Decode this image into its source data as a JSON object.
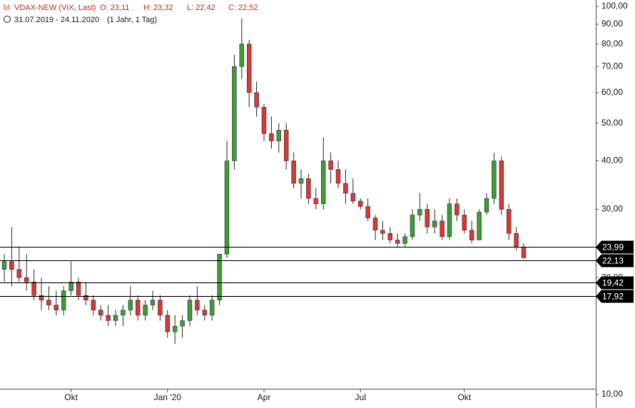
{
  "header": {
    "title": "VDAX-NEW (VIX, Last)",
    "ohlc": [
      "O: 23,11",
      "H: 23,32",
      "L: 22,42",
      "C: 22,52"
    ],
    "range": "31.07.2019 - 24.11.2020",
    "period": "(1 Jahr, 1 Tag)"
  },
  "chart_data": {
    "type": "candlestick",
    "log_scale": true,
    "up_color": "#3f9b3a",
    "down_color": "#d63a3a",
    "categories": [
      null,
      null,
      null,
      null,
      null,
      null,
      null,
      null,
      null,
      "Okt",
      null,
      null,
      null,
      null,
      null,
      null,
      null,
      null,
      null,
      null,
      null,
      null,
      "Jan '20",
      null,
      null,
      null,
      null,
      null,
      null,
      null,
      null,
      null,
      null,
      null,
      null,
      "Apr",
      null,
      null,
      null,
      null,
      null,
      null,
      null,
      null,
      null,
      null,
      null,
      null,
      "Jul",
      null,
      null,
      null,
      null,
      null,
      null,
      null,
      null,
      null,
      null,
      null,
      null,
      null,
      "Okt",
      null,
      null,
      null,
      null,
      null,
      null,
      null,
      null
    ],
    "open": [
      21,
      22,
      21,
      20,
      19.5,
      18,
      17.5,
      17,
      16.5,
      18.5,
      19.5,
      18,
      17.5,
      16.5,
      16,
      15.5,
      16,
      16.5,
      17.5,
      16,
      17,
      17.5,
      16,
      14.5,
      15,
      15.5,
      17.5,
      16.5,
      16,
      17.5,
      23,
      40,
      70,
      80,
      60,
      55,
      47,
      45,
      48,
      40,
      35,
      36,
      32,
      31,
      40,
      38,
      35,
      33,
      31.5,
      30.5,
      28.5,
      26.5,
      26,
      25,
      24.5,
      25.5,
      29,
      30,
      27,
      28,
      25.5,
      31,
      29,
      26.5,
      25,
      29.5,
      32,
      40,
      30,
      26,
      24
    ],
    "high": [
      23,
      27,
      24,
      23,
      21,
      20,
      19,
      18.5,
      19,
      22,
      20,
      19.5,
      18,
      17,
      17,
      16.5,
      17,
      19,
      18,
      17.5,
      18.5,
      18,
      16.5,
      16,
      16,
      18,
      19,
      17,
      18,
      23,
      45,
      75,
      93,
      82,
      64,
      56,
      52,
      50,
      50,
      42,
      38,
      37,
      34,
      46,
      42,
      40,
      38,
      36,
      32,
      32,
      29,
      28,
      27,
      26,
      26,
      30,
      33,
      31,
      30,
      29,
      32,
      32,
      30,
      28,
      30,
      33,
      42,
      41,
      31,
      27,
      24.5
    ],
    "low": [
      19.5,
      19,
      19.5,
      18.5,
      17.5,
      16.5,
      16.5,
      16,
      16,
      18,
      17.5,
      17,
      16,
      15.5,
      15,
      15,
      15,
      16,
      15.5,
      15.5,
      16.5,
      15.5,
      14,
      13.5,
      14,
      15,
      16,
      15.5,
      15.5,
      17,
      22.5,
      38,
      65,
      55,
      52,
      45,
      43,
      42,
      38,
      34,
      32,
      31,
      30,
      30,
      35,
      34,
      31,
      31,
      30,
      28,
      25,
      25,
      24.5,
      24,
      24,
      25,
      28,
      26,
      26,
      25,
      25,
      28,
      26,
      24.5,
      25,
      29,
      31,
      29,
      25,
      23.5,
      22.4
    ],
    "close": [
      22,
      21,
      20,
      19.5,
      18,
      17.5,
      17,
      16.5,
      18.5,
      19.5,
      18,
      17.5,
      16.5,
      16,
      15.5,
      16,
      16.5,
      17.5,
      16,
      17,
      17.5,
      16,
      14.5,
      15,
      15.5,
      17.5,
      16.5,
      16,
      17.5,
      23,
      40,
      70,
      80,
      60,
      55,
      47,
      45,
      48,
      40,
      35,
      36,
      32,
      31,
      40,
      38,
      35,
      33,
      31.5,
      30.5,
      28.5,
      26.5,
      26,
      25,
      24.5,
      25.5,
      29,
      30,
      27,
      28,
      25.5,
      31,
      29,
      26.5,
      25,
      29.5,
      32,
      40,
      30,
      26,
      24,
      22.5
    ],
    "ylim": [
      10,
      100
    ],
    "yticks": [
      {
        "value": 100,
        "label": "100,00"
      },
      {
        "value": 90,
        "label": "90,00"
      },
      {
        "value": 80,
        "label": "80,00"
      },
      {
        "value": 70,
        "label": "70,00"
      },
      {
        "value": 60,
        "label": "60,00"
      },
      {
        "value": 50,
        "label": "50,00"
      },
      {
        "value": 40,
        "label": "40,00"
      },
      {
        "value": 30,
        "label": "30,00"
      },
      {
        "value": 20,
        "label": "20,00"
      },
      {
        "value": 10,
        "label": "10,00"
      }
    ],
    "hlines": {
      "values": [
        23.99,
        22.13,
        19.42,
        17.92
      ],
      "value_labels": [
        "23,99",
        "22,13",
        "19,42",
        "17,92"
      ]
    }
  }
}
